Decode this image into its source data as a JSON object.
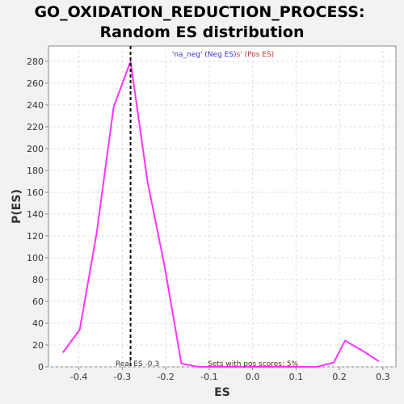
{
  "chart_data": {
    "type": "line",
    "title": [
      "GO_OXIDATION_REDUCTION_PROCESS:",
      "Random ES distribution"
    ],
    "xlabel": "ES",
    "ylabel": "P(ES)",
    "xlim": [
      -0.47,
      0.33
    ],
    "ylim": [
      0,
      294
    ],
    "xticks": [
      -0.4,
      -0.3,
      -0.2,
      -0.1,
      0.0,
      0.1,
      0.2,
      0.3
    ],
    "xtick_labels": [
      "-0.4",
      "-0.3",
      "-0.2",
      "-0.1",
      "0.0",
      "0.1",
      "0.2",
      "0.3"
    ],
    "yticks": [
      0,
      20,
      40,
      60,
      80,
      100,
      120,
      140,
      160,
      180,
      200,
      220,
      240,
      260,
      280
    ],
    "yticks_labels": [
      "0",
      "20",
      "40",
      "60",
      "80",
      "100",
      "120",
      "140",
      "160",
      "180",
      "200",
      "220",
      "240",
      "260",
      "280"
    ],
    "grid": true,
    "series": [
      {
        "color": "#ff33ff",
        "x": [
          -0.437,
          -0.398,
          -0.359,
          -0.32,
          -0.281,
          -0.242,
          -0.203,
          -0.164,
          -0.125,
          -0.086,
          -0.047,
          -0.008,
          0.031,
          0.07,
          0.109,
          0.148,
          0.187,
          0.213,
          0.252,
          0.291
        ],
        "y": [
          13,
          34,
          123,
          238,
          280,
          170,
          93,
          3,
          0,
          0,
          0,
          0,
          0,
          0,
          0,
          0,
          4,
          24,
          15,
          5
        ]
      }
    ],
    "real_es": -0.281,
    "legend": {
      "neg_text": "'na_neg' (Neg ES)",
      "pos_text": "s' (Pos ES)",
      "neg_color": "#3333cc",
      "pos_color": "#cc3333"
    },
    "annotations": {
      "real_es_label": "Real ES -0.3",
      "pos_scores_label": "Sets with pos scores: 5%"
    }
  }
}
